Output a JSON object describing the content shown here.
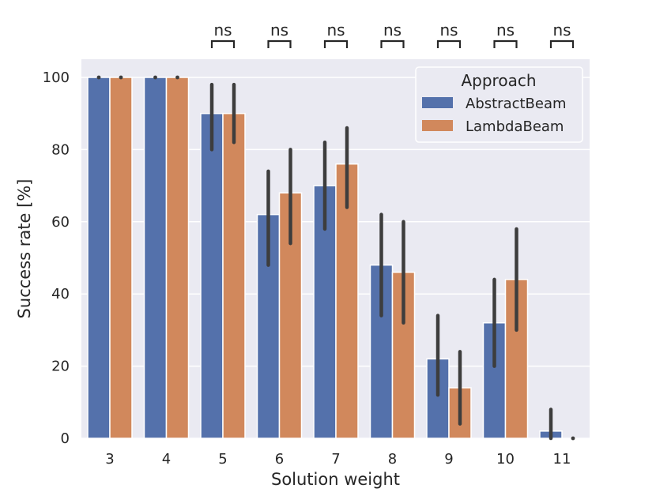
{
  "chart_data": {
    "type": "bar",
    "xlabel": "Solution weight",
    "ylabel": "Success rate [%]",
    "ylim": [
      0,
      100
    ],
    "yticks": [
      0,
      20,
      40,
      60,
      80,
      100
    ],
    "categories": [
      "3",
      "4",
      "5",
      "6",
      "7",
      "8",
      "9",
      "10",
      "11"
    ],
    "legend": {
      "title": "Approach",
      "placement": "top-right"
    },
    "series": [
      {
        "name": "AbstractBeam",
        "color": "#5471ab",
        "values": [
          100,
          100,
          90,
          62,
          70,
          48,
          22,
          32,
          2
        ],
        "error_low": [
          100,
          100,
          80,
          48,
          58,
          34,
          12,
          20,
          0
        ],
        "error_high": [
          100,
          100,
          98,
          74,
          82,
          62,
          34,
          44,
          8
        ]
      },
      {
        "name": "LambdaBeam",
        "color": "#d1885c",
        "values": [
          100,
          100,
          90,
          68,
          76,
          46,
          14,
          44,
          0
        ],
        "error_low": [
          100,
          100,
          82,
          54,
          64,
          32,
          4,
          30,
          0
        ],
        "error_high": [
          100,
          100,
          98,
          80,
          86,
          60,
          24,
          58,
          0
        ]
      }
    ],
    "significance": [
      {
        "category": "5",
        "label": "ns"
      },
      {
        "category": "6",
        "label": "ns"
      },
      {
        "category": "7",
        "label": "ns"
      },
      {
        "category": "8",
        "label": "ns"
      },
      {
        "category": "9",
        "label": "ns"
      },
      {
        "category": "10",
        "label": "ns"
      },
      {
        "category": "11",
        "label": "ns"
      }
    ]
  }
}
